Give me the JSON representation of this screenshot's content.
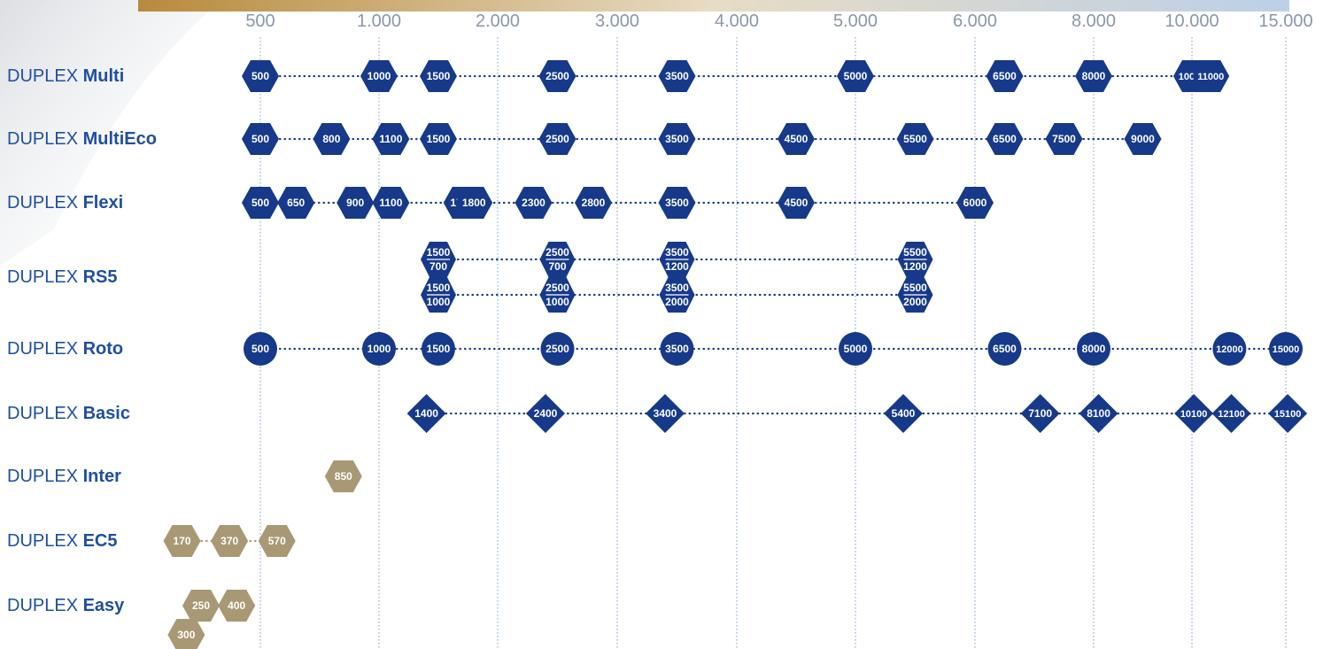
{
  "chart_data": {
    "type": "range-markers",
    "x_ticks": [
      {
        "label": "500",
        "value": 500
      },
      {
        "label": "1.000",
        "value": 1000
      },
      {
        "label": "2.000",
        "value": 2000
      },
      {
        "label": "3.000",
        "value": 3000
      },
      {
        "label": "4.000",
        "value": 4000
      },
      {
        "label": "5.000",
        "value": 5000
      },
      {
        "label": "6.000",
        "value": 6000
      },
      {
        "label": "8.000",
        "value": 8000
      },
      {
        "label": "10.000",
        "value": 10000
      },
      {
        "label": "15.000",
        "value": 15000
      }
    ],
    "series": [
      {
        "prefix": "DUPLEX",
        "name": "Multi",
        "shape": "hexagon",
        "color": "#16398a",
        "rows": [
          [
            {
              "label": "500",
              "value": 500
            },
            {
              "label": "1000",
              "value": 1000
            },
            {
              "label": "1500",
              "value": 1500
            },
            {
              "label": "2500",
              "value": 2500
            },
            {
              "label": "3500",
              "value": 3500
            },
            {
              "label": "5000",
              "value": 5000
            },
            {
              "label": "6500",
              "value": 6500
            },
            {
              "label": "8000",
              "value": 8000
            },
            {
              "label": "10000",
              "value": 10000
            },
            {
              "label": "11000",
              "value": 11000
            }
          ]
        ]
      },
      {
        "prefix": "DUPLEX",
        "name": "MultiEco",
        "shape": "hexagon",
        "color": "#16398a",
        "rows": [
          [
            {
              "label": "500",
              "value": 500
            },
            {
              "label": "800",
              "value": 800
            },
            {
              "label": "1100",
              "value": 1100
            },
            {
              "label": "1500",
              "value": 1500
            },
            {
              "label": "2500",
              "value": 2500
            },
            {
              "label": "3500",
              "value": 3500
            },
            {
              "label": "4500",
              "value": 4500
            },
            {
              "label": "5500",
              "value": 5500
            },
            {
              "label": "6500",
              "value": 6500
            },
            {
              "label": "7500",
              "value": 7500
            },
            {
              "label": "9000",
              "value": 9000
            }
          ]
        ]
      },
      {
        "prefix": "DUPLEX",
        "name": "Flexi",
        "shape": "hexagon",
        "color": "#16398a",
        "rows": [
          [
            {
              "label": "500",
              "value": 500
            },
            {
              "label": "650",
              "value": 650
            },
            {
              "label": "900",
              "value": 900
            },
            {
              "label": "1100",
              "value": 1100
            },
            {
              "label": "1700",
              "value": 1700
            },
            {
              "label": "1800",
              "value": 1800
            },
            {
              "label": "2300",
              "value": 2300
            },
            {
              "label": "2800",
              "value": 2800
            },
            {
              "label": "3500",
              "value": 3500
            },
            {
              "label": "4500",
              "value": 4500
            },
            {
              "label": "6000",
              "value": 6000
            }
          ]
        ]
      },
      {
        "prefix": "DUPLEX",
        "name": "RS5",
        "shape": "hexagon",
        "color": "#16398a",
        "rows": [
          [
            {
              "label": "1500",
              "label2": "700",
              "value": 1500
            },
            {
              "label": "2500",
              "label2": "700",
              "value": 2500
            },
            {
              "label": "3500",
              "label2": "1200",
              "value": 3500
            },
            {
              "label": "5500",
              "label2": "1200",
              "value": 5500
            }
          ],
          [
            {
              "label": "1500",
              "label2": "1000",
              "value": 1500
            },
            {
              "label": "2500",
              "label2": "1000",
              "value": 2500
            },
            {
              "label": "3500",
              "label2": "2000",
              "value": 3500
            },
            {
              "label": "5500",
              "label2": "2000",
              "value": 5500
            }
          ]
        ]
      },
      {
        "prefix": "DUPLEX",
        "name": "Roto",
        "shape": "circle",
        "color": "#16398a",
        "rows": [
          [
            {
              "label": "500",
              "value": 500
            },
            {
              "label": "1000",
              "value": 1000
            },
            {
              "label": "1500",
              "value": 1500
            },
            {
              "label": "2500",
              "value": 2500
            },
            {
              "label": "3500",
              "value": 3500
            },
            {
              "label": "5000",
              "value": 5000
            },
            {
              "label": "6500",
              "value": 6500
            },
            {
              "label": "8000",
              "value": 8000
            },
            {
              "label": "12000",
              "value": 12000
            },
            {
              "label": "15000",
              "value": 15000
            }
          ]
        ]
      },
      {
        "prefix": "DUPLEX",
        "name": "Basic",
        "shape": "diamond",
        "color": "#16398a",
        "rows": [
          [
            {
              "label": "1400",
              "value": 1400
            },
            {
              "label": "2400",
              "value": 2400
            },
            {
              "label": "3400",
              "value": 3400
            },
            {
              "label": "5400",
              "value": 5400
            },
            {
              "label": "7100",
              "value": 7100
            },
            {
              "label": "8100",
              "value": 8100
            },
            {
              "label": "10100",
              "value": 10100
            },
            {
              "label": "12100",
              "value": 12100
            },
            {
              "label": "15100",
              "value": 15100
            }
          ]
        ]
      },
      {
        "prefix": "DUPLEX",
        "name": "Inter",
        "shape": "hexagon",
        "color": "#a89874",
        "rows": [
          [
            {
              "label": "850",
              "value": 850
            }
          ]
        ]
      },
      {
        "prefix": "DUPLEX",
        "name": "EC5",
        "shape": "hexagon",
        "color": "#a89874",
        "rows": [
          [
            {
              "label": "170",
              "value": 170
            },
            {
              "label": "370",
              "value": 370
            },
            {
              "label": "570",
              "value": 570
            }
          ]
        ]
      },
      {
        "prefix": "DUPLEX",
        "name": "Easy",
        "shape": "hexagon",
        "color": "#a89874",
        "rows": [
          [
            {
              "label": "250",
              "value": 250
            },
            {
              "label": "400",
              "value": 400
            }
          ],
          [
            {
              "label": "300",
              "value": 300
            }
          ]
        ]
      }
    ]
  }
}
